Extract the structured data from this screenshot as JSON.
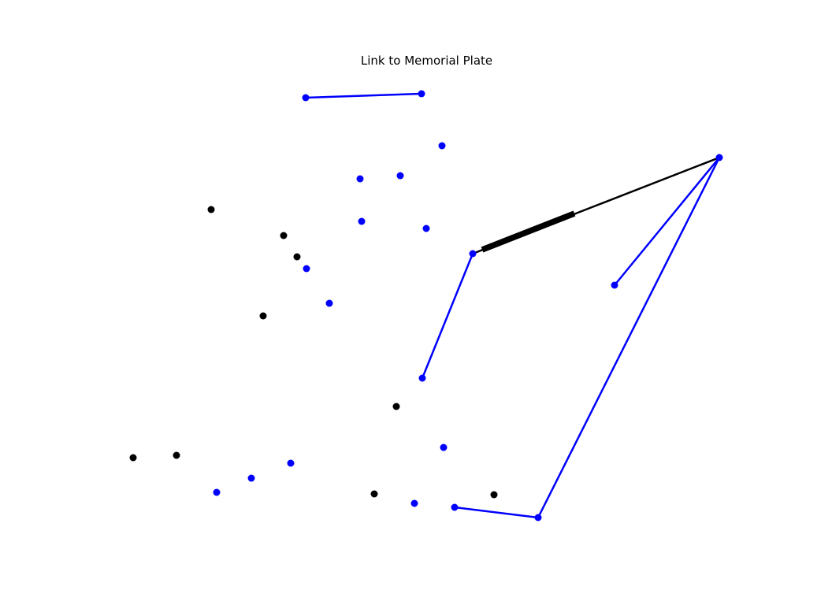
{
  "title": "Link to Memorial Plate",
  "colors": {
    "background": "#ffffff",
    "blue": "#0000ff",
    "black": "#000000"
  }
}
